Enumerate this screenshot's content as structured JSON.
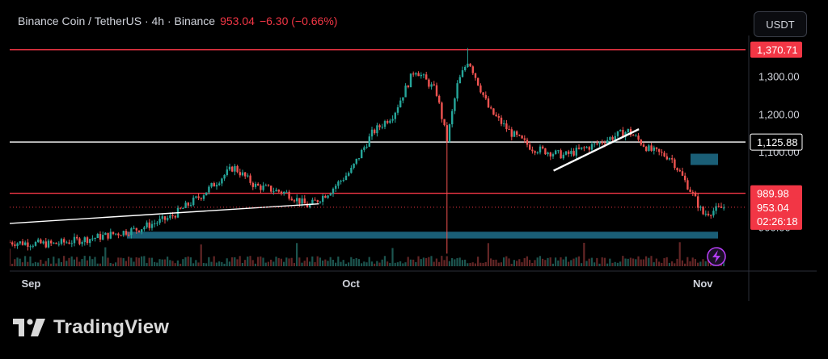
{
  "header": {
    "symbol": "Binance Coin / TetherUS · 4h · Binance",
    "price": "953.04",
    "change": "−6.30 (−0.66%)"
  },
  "currency_button": "USDT",
  "brand": "TradingView",
  "colors": {
    "bull": "#26a69a",
    "bear": "#ef5350",
    "red_line": "#f23645",
    "white_line": "#ffffff",
    "zone": "#1f6f8b",
    "text": "#d1d4dc"
  },
  "chart_data": {
    "type": "candlestick",
    "title": "Binance Coin / TetherUS · 4h · Binance",
    "xlabel": "",
    "ylabel": "",
    "x_ticks": [
      "Sep",
      "Oct",
      "Nov"
    ],
    "y_ticks": [
      900,
      1100,
      1200,
      1300
    ],
    "y_tick_labels": [
      "900.00",
      "1,100.00",
      "1,200.00",
      "1,300.00"
    ],
    "ylim": [
      805,
      1400
    ],
    "grid": false,
    "close_path": [
      {
        "date": "2025-08-31",
        "price": 860
      },
      {
        "date": "2025-09-04",
        "price": 855
      },
      {
        "date": "2025-09-08",
        "price": 872
      },
      {
        "date": "2025-09-12",
        "price": 895
      },
      {
        "date": "2025-09-15",
        "price": 925
      },
      {
        "date": "2025-09-18",
        "price": 985
      },
      {
        "date": "2025-09-21",
        "price": 1060
      },
      {
        "date": "2025-09-23",
        "price": 1010
      },
      {
        "date": "2025-09-26",
        "price": 990
      },
      {
        "date": "2025-09-28",
        "price": 955
      },
      {
        "date": "2025-09-30",
        "price": 995
      },
      {
        "date": "2025-10-02",
        "price": 1050
      },
      {
        "date": "2025-10-04",
        "price": 1150
      },
      {
        "date": "2025-10-06",
        "price": 1200
      },
      {
        "date": "2025-10-08",
        "price": 1320
      },
      {
        "date": "2025-10-10",
        "price": 1260
      },
      {
        "date": "2025-10-11",
        "price": 1130
      },
      {
        "date": "2025-10-12",
        "price": 1280
      },
      {
        "date": "2025-10-13",
        "price": 1345
      },
      {
        "date": "2025-10-15",
        "price": 1210
      },
      {
        "date": "2025-10-17",
        "price": 1150
      },
      {
        "date": "2025-10-19",
        "price": 1110
      },
      {
        "date": "2025-10-22",
        "price": 1090
      },
      {
        "date": "2025-10-25",
        "price": 1120
      },
      {
        "date": "2025-10-27",
        "price": 1145
      },
      {
        "date": "2025-10-28",
        "price": 1155
      },
      {
        "date": "2025-10-30",
        "price": 1105
      },
      {
        "date": "2025-11-01",
        "price": 1085
      },
      {
        "date": "2025-11-03",
        "price": 990
      },
      {
        "date": "2025-11-04",
        "price": 935
      },
      {
        "date": "2025-11-06",
        "price": 953
      }
    ],
    "horizontal_lines": [
      {
        "price": 1370.71,
        "label": "1,370.71",
        "color": "#f23645"
      },
      {
        "price": 1125.88,
        "label": "1,125.88",
        "color": "#ffffff"
      },
      {
        "price": 989.98,
        "label": "989.98",
        "color": "#f23645"
      }
    ],
    "current_price": {
      "price": 953.04,
      "label": "953.04",
      "countdown": "02:26:18"
    },
    "zones": [
      {
        "from": 1065,
        "to": 1095
      },
      {
        "from": 870,
        "to": 888
      }
    ],
    "trendlines": [
      {
        "from": {
          "date": "2025-08-31",
          "price": 910
        },
        "to": {
          "date": "2025-09-29",
          "price": 962
        }
      },
      {
        "from": {
          "date": "2025-10-21",
          "price": 1050
        },
        "to": {
          "date": "2025-10-29",
          "price": 1160
        }
      }
    ]
  }
}
